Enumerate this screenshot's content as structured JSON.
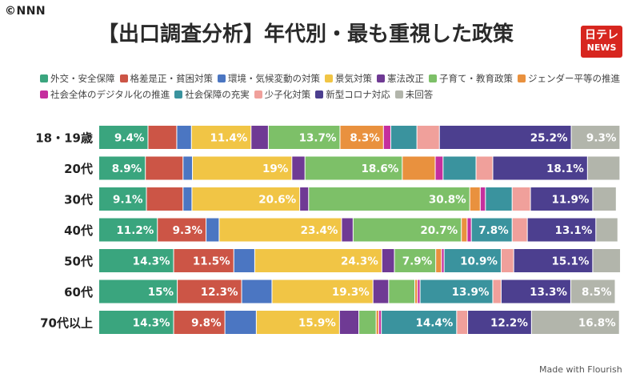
{
  "header": {
    "copyright": "©NNN",
    "title": "【出口調査分析】年代別・最も重視した政策",
    "logo_line1": "日テレ",
    "logo_line2": "NEWS"
  },
  "footer": {
    "credit": "Made with Flourish"
  },
  "chart_data": {
    "type": "bar",
    "orientation": "horizontal",
    "stacked": true,
    "normalized_to": 100,
    "title": "【出口調査分析】年代別・最も重視した政策",
    "legend_position": "top",
    "categories": [
      "18・19歳",
      "20代",
      "30代",
      "40代",
      "50代",
      "60代",
      "70代以上"
    ],
    "series": [
      {
        "name": "外交・安全保障",
        "color": "#3aa57e",
        "values": [
          9.4,
          8.9,
          9.1,
          11.2,
          14.3,
          15,
          14.3
        ]
      },
      {
        "name": "格差是正・貧困対策",
        "color": "#cc5546",
        "values": [
          5.5,
          7.2,
          7.0,
          9.3,
          11.5,
          12.3,
          9.8
        ]
      },
      {
        "name": "環境・気候変動の対策",
        "color": "#4b76c2",
        "values": [
          2.8,
          1.8,
          1.7,
          2.5,
          4.0,
          5.8,
          6.0
        ]
      },
      {
        "name": "景気対策",
        "color": "#f1c545",
        "values": [
          11.4,
          19,
          20.6,
          23.4,
          24.3,
          19.3,
          15.9
        ]
      },
      {
        "name": "憲法改正",
        "color": "#6f3a94",
        "values": [
          3.3,
          2.5,
          1.7,
          2.2,
          2.4,
          3.0,
          3.7
        ]
      },
      {
        "name": "子育て・教育政策",
        "color": "#7dc068",
        "values": [
          13.7,
          18.6,
          30.8,
          20.7,
          7.9,
          5.0,
          3.3
        ]
      },
      {
        "name": "ジェンダー平等の推進",
        "color": "#e9913e",
        "values": [
          8.3,
          6.3,
          2.0,
          1.1,
          1.1,
          0.5,
          0.5
        ]
      },
      {
        "name": "社会全体のデジタル化の推進",
        "color": "#c52f9e",
        "values": [
          1.4,
          1.5,
          1.0,
          0.8,
          0.5,
          0.5,
          0.5
        ]
      },
      {
        "name": "社会保障の充実",
        "color": "#3a939e",
        "values": [
          5.0,
          6.3,
          5.1,
          7.8,
          10.9,
          13.9,
          14.4
        ]
      },
      {
        "name": "少子化対策",
        "color": "#f0a09b",
        "values": [
          4.3,
          3.2,
          3.5,
          2.9,
          2.4,
          1.6,
          2.1
        ]
      },
      {
        "name": "新型コロナ対応",
        "color": "#4c3f8f",
        "values": [
          25.2,
          18.1,
          11.9,
          13.1,
          15.1,
          13.3,
          12.2
        ]
      },
      {
        "name": "未回答",
        "color": "#b2b5ab",
        "values": [
          9.3,
          6.2,
          4.5,
          4.2,
          5.3,
          8.5,
          16.8
        ]
      }
    ],
    "data_labels": [
      [
        [
          0,
          "9.4%"
        ],
        [
          3,
          "11.4%"
        ],
        [
          5,
          "13.7%"
        ],
        [
          6,
          "8.3%"
        ],
        [
          10,
          "25.2%"
        ],
        [
          11,
          "9.3%"
        ]
      ],
      [
        [
          0,
          "8.9%"
        ],
        [
          3,
          "19%"
        ],
        [
          5,
          "18.6%"
        ],
        [
          10,
          "18.1%"
        ]
      ],
      [
        [
          0,
          "9.1%"
        ],
        [
          3,
          "20.6%"
        ],
        [
          5,
          "30.8%"
        ],
        [
          10,
          "11.9%"
        ]
      ],
      [
        [
          0,
          "11.2%"
        ],
        [
          1,
          "9.3%"
        ],
        [
          3,
          "23.4%"
        ],
        [
          5,
          "20.7%"
        ],
        [
          8,
          "7.8%"
        ],
        [
          10,
          "13.1%"
        ]
      ],
      [
        [
          0,
          "14.3%"
        ],
        [
          1,
          "11.5%"
        ],
        [
          3,
          "24.3%"
        ],
        [
          5,
          "7.9%"
        ],
        [
          8,
          "10.9%"
        ],
        [
          10,
          "15.1%"
        ]
      ],
      [
        [
          0,
          "15%"
        ],
        [
          1,
          "12.3%"
        ],
        [
          3,
          "19.3%"
        ],
        [
          8,
          "13.9%"
        ],
        [
          10,
          "13.3%"
        ],
        [
          11,
          "8.5%"
        ]
      ],
      [
        [
          0,
          "14.3%"
        ],
        [
          1,
          "9.8%"
        ],
        [
          3,
          "15.9%"
        ],
        [
          8,
          "14.4%"
        ],
        [
          10,
          "12.2%"
        ],
        [
          11,
          "16.8%"
        ]
      ]
    ]
  }
}
